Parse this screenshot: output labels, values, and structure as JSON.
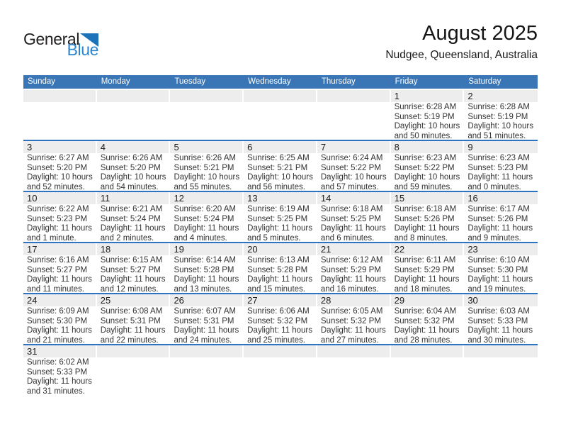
{
  "logo": {
    "text_general": "General",
    "text_blue": "Blue"
  },
  "header": {
    "title": "August 2025",
    "subtitle": "Nudgee, Queensland, Australia"
  },
  "colors": {
    "header_blue": "#3a76b5",
    "row_border_blue": "#2d73c2",
    "band_gray": "#ededed",
    "logo_triangle_blue": "#1b74ba",
    "logo_text_blue": "#2b86cf"
  },
  "weekdays": [
    "Sunday",
    "Monday",
    "Tuesday",
    "Wednesday",
    "Thursday",
    "Friday",
    "Saturday"
  ],
  "weeks": [
    [
      null,
      null,
      null,
      null,
      null,
      {
        "day": "1",
        "sunrise": "Sunrise: 6:28 AM",
        "sunset": "Sunset: 5:19 PM",
        "daylight_lines": [
          "Daylight: 10 hours",
          "and 50 minutes."
        ]
      },
      {
        "day": "2",
        "sunrise": "Sunrise: 6:28 AM",
        "sunset": "Sunset: 5:19 PM",
        "daylight_lines": [
          "Daylight: 10 hours",
          "and 51 minutes."
        ]
      }
    ],
    [
      {
        "day": "3",
        "sunrise": "Sunrise: 6:27 AM",
        "sunset": "Sunset: 5:20 PM",
        "daylight_lines": [
          "Daylight: 10 hours",
          "and 52 minutes."
        ]
      },
      {
        "day": "4",
        "sunrise": "Sunrise: 6:26 AM",
        "sunset": "Sunset: 5:20 PM",
        "daylight_lines": [
          "Daylight: 10 hours",
          "and 54 minutes."
        ]
      },
      {
        "day": "5",
        "sunrise": "Sunrise: 6:26 AM",
        "sunset": "Sunset: 5:21 PM",
        "daylight_lines": [
          "Daylight: 10 hours",
          "and 55 minutes."
        ]
      },
      {
        "day": "6",
        "sunrise": "Sunrise: 6:25 AM",
        "sunset": "Sunset: 5:21 PM",
        "daylight_lines": [
          "Daylight: 10 hours",
          "and 56 minutes."
        ]
      },
      {
        "day": "7",
        "sunrise": "Sunrise: 6:24 AM",
        "sunset": "Sunset: 5:22 PM",
        "daylight_lines": [
          "Daylight: 10 hours",
          "and 57 minutes."
        ]
      },
      {
        "day": "8",
        "sunrise": "Sunrise: 6:23 AM",
        "sunset": "Sunset: 5:22 PM",
        "daylight_lines": [
          "Daylight: 10 hours",
          "and 59 minutes."
        ]
      },
      {
        "day": "9",
        "sunrise": "Sunrise: 6:23 AM",
        "sunset": "Sunset: 5:23 PM",
        "daylight_lines": [
          "Daylight: 11 hours",
          "and 0 minutes."
        ]
      }
    ],
    [
      {
        "day": "10",
        "sunrise": "Sunrise: 6:22 AM",
        "sunset": "Sunset: 5:23 PM",
        "daylight_lines": [
          "Daylight: 11 hours",
          "and 1 minute."
        ]
      },
      {
        "day": "11",
        "sunrise": "Sunrise: 6:21 AM",
        "sunset": "Sunset: 5:24 PM",
        "daylight_lines": [
          "Daylight: 11 hours",
          "and 2 minutes."
        ]
      },
      {
        "day": "12",
        "sunrise": "Sunrise: 6:20 AM",
        "sunset": "Sunset: 5:24 PM",
        "daylight_lines": [
          "Daylight: 11 hours",
          "and 4 minutes."
        ]
      },
      {
        "day": "13",
        "sunrise": "Sunrise: 6:19 AM",
        "sunset": "Sunset: 5:25 PM",
        "daylight_lines": [
          "Daylight: 11 hours",
          "and 5 minutes."
        ]
      },
      {
        "day": "14",
        "sunrise": "Sunrise: 6:18 AM",
        "sunset": "Sunset: 5:25 PM",
        "daylight_lines": [
          "Daylight: 11 hours",
          "and 6 minutes."
        ]
      },
      {
        "day": "15",
        "sunrise": "Sunrise: 6:18 AM",
        "sunset": "Sunset: 5:26 PM",
        "daylight_lines": [
          "Daylight: 11 hours",
          "and 8 minutes."
        ]
      },
      {
        "day": "16",
        "sunrise": "Sunrise: 6:17 AM",
        "sunset": "Sunset: 5:26 PM",
        "daylight_lines": [
          "Daylight: 11 hours",
          "and 9 minutes."
        ]
      }
    ],
    [
      {
        "day": "17",
        "sunrise": "Sunrise: 6:16 AM",
        "sunset": "Sunset: 5:27 PM",
        "daylight_lines": [
          "Daylight: 11 hours",
          "and 11 minutes."
        ]
      },
      {
        "day": "18",
        "sunrise": "Sunrise: 6:15 AM",
        "sunset": "Sunset: 5:27 PM",
        "daylight_lines": [
          "Daylight: 11 hours",
          "and 12 minutes."
        ]
      },
      {
        "day": "19",
        "sunrise": "Sunrise: 6:14 AM",
        "sunset": "Sunset: 5:28 PM",
        "daylight_lines": [
          "Daylight: 11 hours",
          "and 13 minutes."
        ]
      },
      {
        "day": "20",
        "sunrise": "Sunrise: 6:13 AM",
        "sunset": "Sunset: 5:28 PM",
        "daylight_lines": [
          "Daylight: 11 hours",
          "and 15 minutes."
        ]
      },
      {
        "day": "21",
        "sunrise": "Sunrise: 6:12 AM",
        "sunset": "Sunset: 5:29 PM",
        "daylight_lines": [
          "Daylight: 11 hours",
          "and 16 minutes."
        ]
      },
      {
        "day": "22",
        "sunrise": "Sunrise: 6:11 AM",
        "sunset": "Sunset: 5:29 PM",
        "daylight_lines": [
          "Daylight: 11 hours",
          "and 18 minutes."
        ]
      },
      {
        "day": "23",
        "sunrise": "Sunrise: 6:10 AM",
        "sunset": "Sunset: 5:30 PM",
        "daylight_lines": [
          "Daylight: 11 hours",
          "and 19 minutes."
        ]
      }
    ],
    [
      {
        "day": "24",
        "sunrise": "Sunrise: 6:09 AM",
        "sunset": "Sunset: 5:30 PM",
        "daylight_lines": [
          "Daylight: 11 hours",
          "and 21 minutes."
        ]
      },
      {
        "day": "25",
        "sunrise": "Sunrise: 6:08 AM",
        "sunset": "Sunset: 5:31 PM",
        "daylight_lines": [
          "Daylight: 11 hours",
          "and 22 minutes."
        ]
      },
      {
        "day": "26",
        "sunrise": "Sunrise: 6:07 AM",
        "sunset": "Sunset: 5:31 PM",
        "daylight_lines": [
          "Daylight: 11 hours",
          "and 24 minutes."
        ]
      },
      {
        "day": "27",
        "sunrise": "Sunrise: 6:06 AM",
        "sunset": "Sunset: 5:32 PM",
        "daylight_lines": [
          "Daylight: 11 hours",
          "and 25 minutes."
        ]
      },
      {
        "day": "28",
        "sunrise": "Sunrise: 6:05 AM",
        "sunset": "Sunset: 5:32 PM",
        "daylight_lines": [
          "Daylight: 11 hours",
          "and 27 minutes."
        ]
      },
      {
        "day": "29",
        "sunrise": "Sunrise: 6:04 AM",
        "sunset": "Sunset: 5:32 PM",
        "daylight_lines": [
          "Daylight: 11 hours",
          "and 28 minutes."
        ]
      },
      {
        "day": "30",
        "sunrise": "Sunrise: 6:03 AM",
        "sunset": "Sunset: 5:33 PM",
        "daylight_lines": [
          "Daylight: 11 hours",
          "and 30 minutes."
        ]
      }
    ],
    [
      {
        "day": "31",
        "sunrise": "Sunrise: 6:02 AM",
        "sunset": "Sunset: 5:33 PM",
        "daylight_lines": [
          "Daylight: 11 hours",
          "and 31 minutes."
        ]
      },
      null,
      null,
      null,
      null,
      null,
      null
    ]
  ]
}
